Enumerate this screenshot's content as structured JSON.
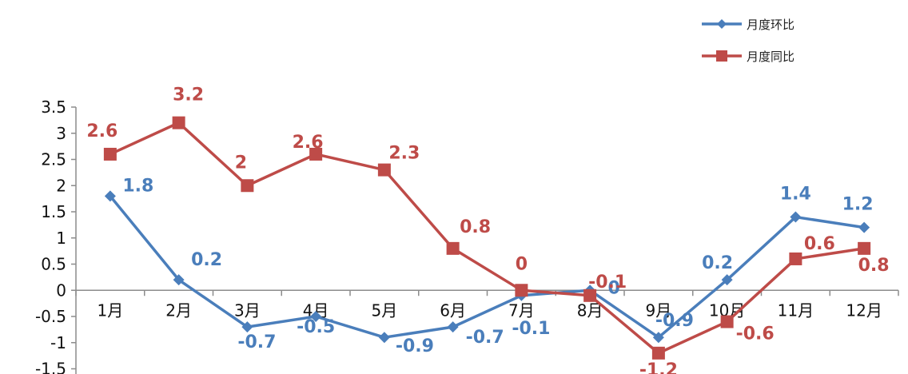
{
  "chart_data": {
    "type": "line",
    "categories": [
      "1月",
      "2月",
      "3月",
      "4月",
      "5月",
      "6月",
      "7月",
      "8月",
      "9月",
      "10月",
      "11月",
      "12月"
    ],
    "series": [
      {
        "name": "月度环比",
        "color": "#4a7ebb",
        "marker": "diamond",
        "values": [
          1.8,
          0.2,
          -0.7,
          -0.5,
          -0.9,
          -0.7,
          -0.1,
          0,
          -0.9,
          0.2,
          1.4,
          1.2
        ],
        "labels": [
          "1.8",
          "0.2",
          "-0.7",
          "-0.5",
          "-0.9",
          "-0.7",
          "-0.1",
          "0",
          "-0.9",
          "0.2",
          "1.4",
          "1.2"
        ]
      },
      {
        "name": "月度同比",
        "color": "#be4b48",
        "marker": "square",
        "values": [
          2.6,
          3.2,
          2,
          2.6,
          2.3,
          0.8,
          0,
          -0.1,
          -1.2,
          -0.6,
          0.6,
          0.8
        ],
        "labels": [
          "2.6",
          "3.2",
          "2",
          "2.6",
          "2.3",
          "0.8",
          "0",
          "-0.1",
          "-1.2",
          "-0.6",
          "0.6",
          "0.8"
        ]
      }
    ],
    "yticks": [
      "3.5",
      "3",
      "2.5",
      "2",
      "1.5",
      "1",
      "0.5",
      "0",
      "-0.5",
      "-1",
      "-1.5"
    ],
    "ylim": [
      -1.5,
      3.5
    ],
    "grid": false,
    "legend_position": "top-right"
  }
}
